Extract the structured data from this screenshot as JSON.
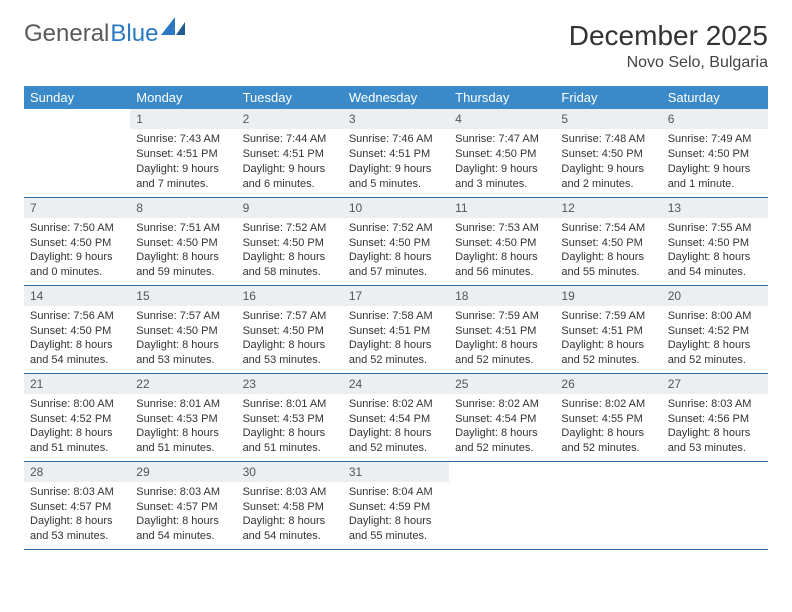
{
  "logo": {
    "part1": "General",
    "part2": "Blue"
  },
  "header": {
    "month_title": "December 2025",
    "location": "Novo Selo, Bulgaria"
  },
  "colors": {
    "header_bg": "#3a8ac9",
    "header_text": "#ffffff",
    "daynum_bg": "#eceff1",
    "row_border": "#2e6da4",
    "logo_blue": "#2b79c2",
    "logo_gray": "#5a5a5a",
    "page_bg": "#ffffff",
    "body_text": "#333333"
  },
  "weekdays": [
    "Sunday",
    "Monday",
    "Tuesday",
    "Wednesday",
    "Thursday",
    "Friday",
    "Saturday"
  ],
  "weeks": [
    [
      {
        "n": "",
        "sr": "",
        "ss": "",
        "dl": ""
      },
      {
        "n": "1",
        "sr": "Sunrise: 7:43 AM",
        "ss": "Sunset: 4:51 PM",
        "dl": "Daylight: 9 hours and 7 minutes."
      },
      {
        "n": "2",
        "sr": "Sunrise: 7:44 AM",
        "ss": "Sunset: 4:51 PM",
        "dl": "Daylight: 9 hours and 6 minutes."
      },
      {
        "n": "3",
        "sr": "Sunrise: 7:46 AM",
        "ss": "Sunset: 4:51 PM",
        "dl": "Daylight: 9 hours and 5 minutes."
      },
      {
        "n": "4",
        "sr": "Sunrise: 7:47 AM",
        "ss": "Sunset: 4:50 PM",
        "dl": "Daylight: 9 hours and 3 minutes."
      },
      {
        "n": "5",
        "sr": "Sunrise: 7:48 AM",
        "ss": "Sunset: 4:50 PM",
        "dl": "Daylight: 9 hours and 2 minutes."
      },
      {
        "n": "6",
        "sr": "Sunrise: 7:49 AM",
        "ss": "Sunset: 4:50 PM",
        "dl": "Daylight: 9 hours and 1 minute."
      }
    ],
    [
      {
        "n": "7",
        "sr": "Sunrise: 7:50 AM",
        "ss": "Sunset: 4:50 PM",
        "dl": "Daylight: 9 hours and 0 minutes."
      },
      {
        "n": "8",
        "sr": "Sunrise: 7:51 AM",
        "ss": "Sunset: 4:50 PM",
        "dl": "Daylight: 8 hours and 59 minutes."
      },
      {
        "n": "9",
        "sr": "Sunrise: 7:52 AM",
        "ss": "Sunset: 4:50 PM",
        "dl": "Daylight: 8 hours and 58 minutes."
      },
      {
        "n": "10",
        "sr": "Sunrise: 7:52 AM",
        "ss": "Sunset: 4:50 PM",
        "dl": "Daylight: 8 hours and 57 minutes."
      },
      {
        "n": "11",
        "sr": "Sunrise: 7:53 AM",
        "ss": "Sunset: 4:50 PM",
        "dl": "Daylight: 8 hours and 56 minutes."
      },
      {
        "n": "12",
        "sr": "Sunrise: 7:54 AM",
        "ss": "Sunset: 4:50 PM",
        "dl": "Daylight: 8 hours and 55 minutes."
      },
      {
        "n": "13",
        "sr": "Sunrise: 7:55 AM",
        "ss": "Sunset: 4:50 PM",
        "dl": "Daylight: 8 hours and 54 minutes."
      }
    ],
    [
      {
        "n": "14",
        "sr": "Sunrise: 7:56 AM",
        "ss": "Sunset: 4:50 PM",
        "dl": "Daylight: 8 hours and 54 minutes."
      },
      {
        "n": "15",
        "sr": "Sunrise: 7:57 AM",
        "ss": "Sunset: 4:50 PM",
        "dl": "Daylight: 8 hours and 53 minutes."
      },
      {
        "n": "16",
        "sr": "Sunrise: 7:57 AM",
        "ss": "Sunset: 4:50 PM",
        "dl": "Daylight: 8 hours and 53 minutes."
      },
      {
        "n": "17",
        "sr": "Sunrise: 7:58 AM",
        "ss": "Sunset: 4:51 PM",
        "dl": "Daylight: 8 hours and 52 minutes."
      },
      {
        "n": "18",
        "sr": "Sunrise: 7:59 AM",
        "ss": "Sunset: 4:51 PM",
        "dl": "Daylight: 8 hours and 52 minutes."
      },
      {
        "n": "19",
        "sr": "Sunrise: 7:59 AM",
        "ss": "Sunset: 4:51 PM",
        "dl": "Daylight: 8 hours and 52 minutes."
      },
      {
        "n": "20",
        "sr": "Sunrise: 8:00 AM",
        "ss": "Sunset: 4:52 PM",
        "dl": "Daylight: 8 hours and 52 minutes."
      }
    ],
    [
      {
        "n": "21",
        "sr": "Sunrise: 8:00 AM",
        "ss": "Sunset: 4:52 PM",
        "dl": "Daylight: 8 hours and 51 minutes."
      },
      {
        "n": "22",
        "sr": "Sunrise: 8:01 AM",
        "ss": "Sunset: 4:53 PM",
        "dl": "Daylight: 8 hours and 51 minutes."
      },
      {
        "n": "23",
        "sr": "Sunrise: 8:01 AM",
        "ss": "Sunset: 4:53 PM",
        "dl": "Daylight: 8 hours and 51 minutes."
      },
      {
        "n": "24",
        "sr": "Sunrise: 8:02 AM",
        "ss": "Sunset: 4:54 PM",
        "dl": "Daylight: 8 hours and 52 minutes."
      },
      {
        "n": "25",
        "sr": "Sunrise: 8:02 AM",
        "ss": "Sunset: 4:54 PM",
        "dl": "Daylight: 8 hours and 52 minutes."
      },
      {
        "n": "26",
        "sr": "Sunrise: 8:02 AM",
        "ss": "Sunset: 4:55 PM",
        "dl": "Daylight: 8 hours and 52 minutes."
      },
      {
        "n": "27",
        "sr": "Sunrise: 8:03 AM",
        "ss": "Sunset: 4:56 PM",
        "dl": "Daylight: 8 hours and 53 minutes."
      }
    ],
    [
      {
        "n": "28",
        "sr": "Sunrise: 8:03 AM",
        "ss": "Sunset: 4:57 PM",
        "dl": "Daylight: 8 hours and 53 minutes."
      },
      {
        "n": "29",
        "sr": "Sunrise: 8:03 AM",
        "ss": "Sunset: 4:57 PM",
        "dl": "Daylight: 8 hours and 54 minutes."
      },
      {
        "n": "30",
        "sr": "Sunrise: 8:03 AM",
        "ss": "Sunset: 4:58 PM",
        "dl": "Daylight: 8 hours and 54 minutes."
      },
      {
        "n": "31",
        "sr": "Sunrise: 8:04 AM",
        "ss": "Sunset: 4:59 PM",
        "dl": "Daylight: 8 hours and 55 minutes."
      },
      {
        "n": "",
        "sr": "",
        "ss": "",
        "dl": ""
      },
      {
        "n": "",
        "sr": "",
        "ss": "",
        "dl": ""
      },
      {
        "n": "",
        "sr": "",
        "ss": "",
        "dl": ""
      }
    ]
  ]
}
